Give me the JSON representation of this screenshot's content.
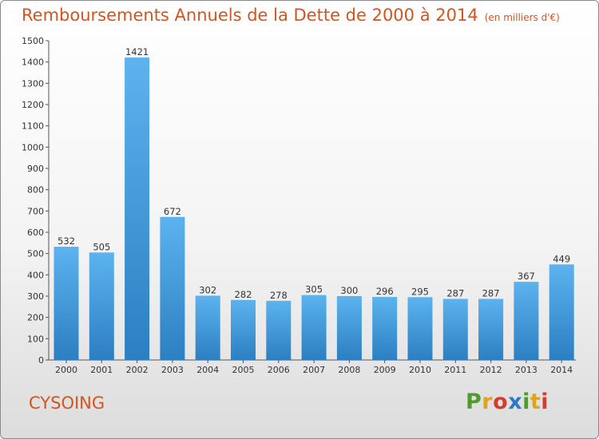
{
  "chart_data": {
    "type": "bar",
    "title": "Remboursements Annuels de la Dette de 2000 à 2014",
    "unit_note": "(en milliers d'€)",
    "categories": [
      "2000",
      "2001",
      "2002",
      "2003",
      "2004",
      "2005",
      "2006",
      "2007",
      "2008",
      "2009",
      "2010",
      "2011",
      "2012",
      "2013",
      "2014"
    ],
    "values": [
      532,
      505,
      1421,
      672,
      302,
      282,
      278,
      305,
      300,
      296,
      295,
      287,
      287,
      367,
      449
    ],
    "ylim": [
      0,
      1500
    ],
    "yticks": [
      0,
      100,
      200,
      300,
      400,
      500,
      600,
      700,
      800,
      900,
      1000,
      1100,
      1200,
      1300,
      1400,
      1500
    ],
    "grid": false,
    "bar_color": "#4da3e0"
  },
  "footer": {
    "city": "CYSOING",
    "logo": "Proxiti"
  }
}
